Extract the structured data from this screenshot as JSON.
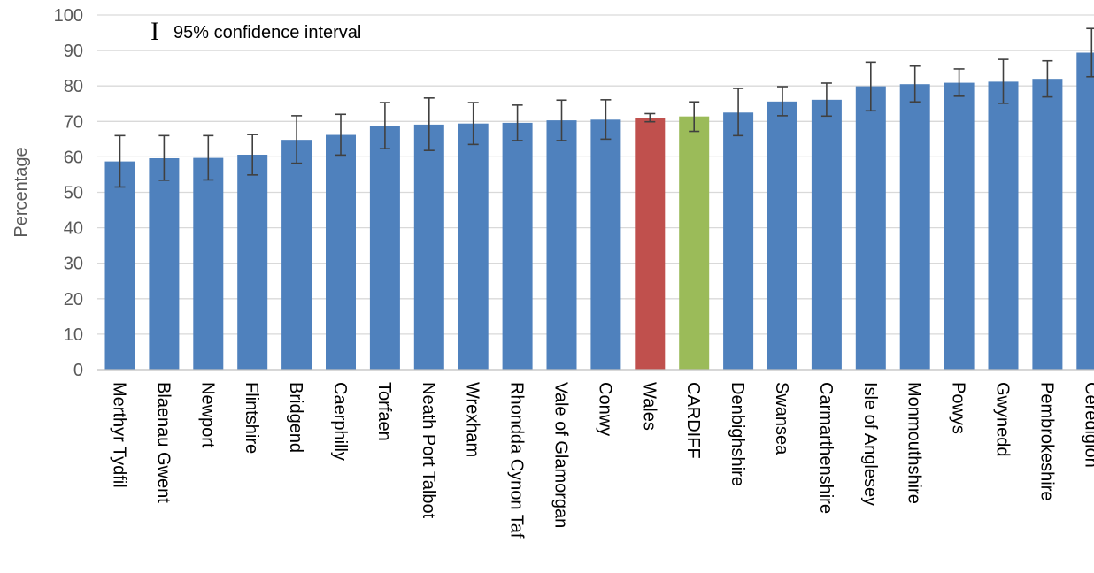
{
  "chart_data": {
    "type": "bar",
    "ylabel": "Percentage",
    "ylim": [
      0,
      100
    ],
    "yticks": [
      0,
      10,
      20,
      30,
      40,
      50,
      60,
      70,
      80,
      90,
      100
    ],
    "grid": true,
    "legend": {
      "glyph": "I",
      "label": "95% confidence interval",
      "placement": "top-left"
    },
    "colors": {
      "default": "#4f81bd",
      "Wales": "#c0504d",
      "CARDIFF": "#9bbb59",
      "error_bar": "#404040",
      "grid": "#d9d9d9",
      "axis": "#bfbfbf"
    },
    "categories": [
      "Merthyr Tydfil",
      "Blaenau Gwent",
      "Newport",
      "Flintshire",
      "Bridgend",
      "Caerphilly",
      "Torfaen",
      "Neath Port Talbot",
      "Wrexham",
      "Rhondda Cynon Taf",
      "Vale of Glamorgan",
      "Conwy",
      "Wales",
      "CARDIFF",
      "Denbighshire",
      "Swansea",
      "Carmarthenshire",
      "Isle of Anglesey",
      "Monmouthshire",
      "Powys",
      "Gwynedd",
      "Pembrokeshire",
      "Ceredigion"
    ],
    "values": [
      58.7,
      59.6,
      59.7,
      60.6,
      64.8,
      66.2,
      68.8,
      69.1,
      69.4,
      69.6,
      70.3,
      70.5,
      71.0,
      71.4,
      72.5,
      75.6,
      76.1,
      79.9,
      80.5,
      80.9,
      81.2,
      82.0,
      89.4
    ],
    "lower": [
      51.5,
      53.4,
      53.5,
      54.9,
      58.2,
      60.5,
      62.3,
      61.8,
      63.5,
      64.6,
      64.6,
      65.0,
      69.9,
      67.2,
      66.0,
      71.6,
      71.5,
      73.0,
      75.5,
      77.1,
      75.1,
      76.9,
      82.6
    ],
    "upper": [
      66.0,
      66.0,
      66.0,
      66.3,
      71.6,
      72.0,
      75.3,
      76.6,
      75.3,
      74.6,
      76.0,
      76.1,
      72.2,
      75.5,
      79.3,
      79.8,
      80.8,
      86.7,
      85.6,
      84.8,
      87.5,
      87.1,
      96.2
    ]
  }
}
